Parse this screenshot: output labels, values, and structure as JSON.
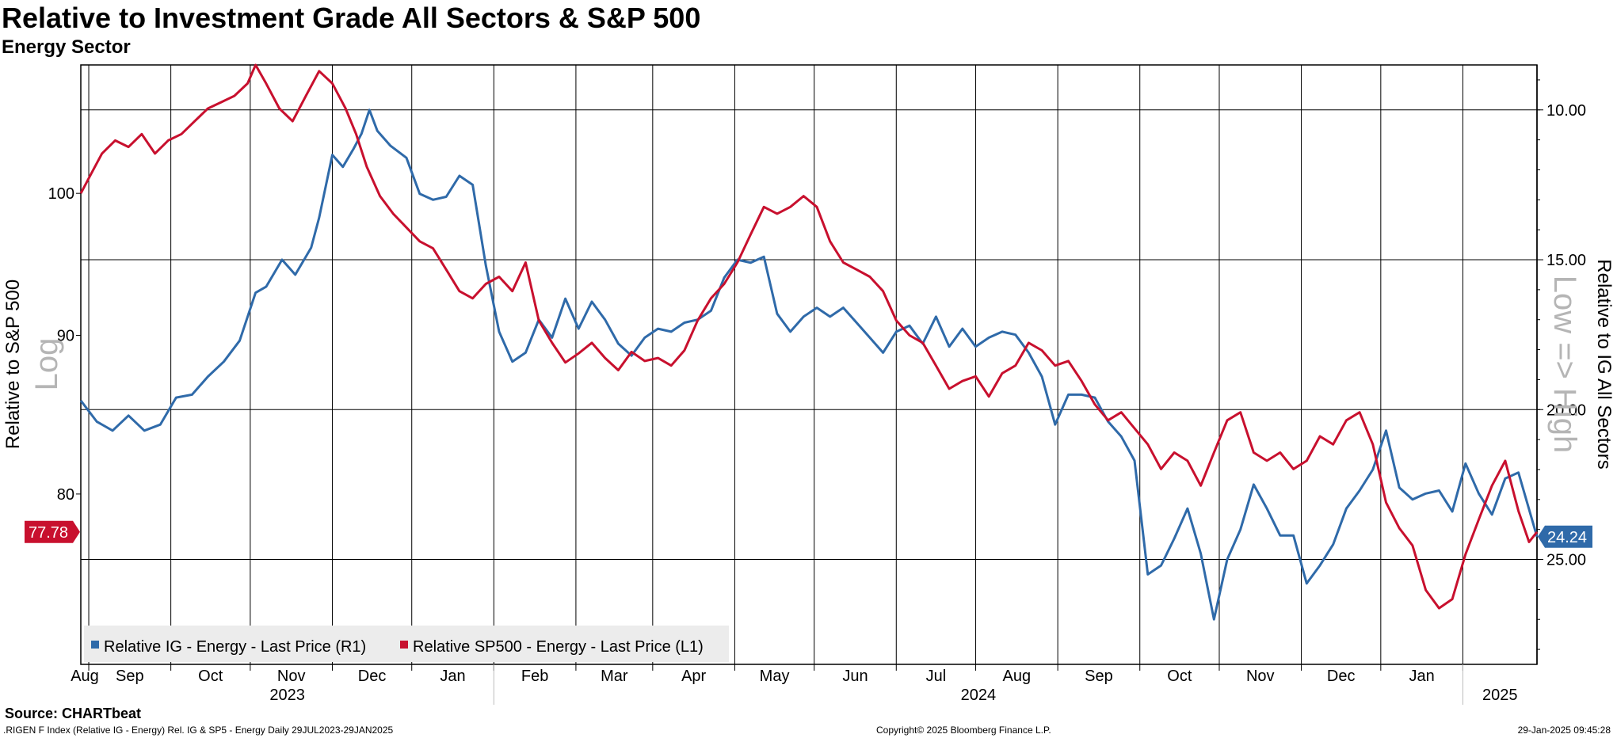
{
  "title": "Relative to Investment Grade All Sectors & S&P 500",
  "subtitle": "Energy Sector",
  "source": "Source: CHARTbeat",
  "footer": {
    "left": ".RIGEN F Index (Relative IG - Energy) Rel. IG & SP5 - Energy  Daily 29JUL2023-29JAN2025",
    "center": "Copyright© 2025 Bloomberg Finance L.P.",
    "right": "29-Jan-2025 09:45:28"
  },
  "chart_data": {
    "type": "line",
    "x_range": [
      "2023-07-29",
      "2025-01-29"
    ],
    "months": [
      "Aug",
      "Sep",
      "Oct",
      "Nov",
      "Dec",
      "Jan",
      "Feb",
      "Mar",
      "Apr",
      "May",
      "Jun",
      "Jul",
      "Aug",
      "Sep",
      "Oct",
      "Nov",
      "Dec",
      "Jan"
    ],
    "years": [
      "2023",
      "2024",
      "2025"
    ],
    "left_axis": {
      "label": "Relative to S&P 500",
      "scale_note": "Log",
      "scale": "log",
      "range": [
        70.5,
        110
      ],
      "ticks": [
        80,
        90,
        100
      ],
      "last_value_label": "77.78",
      "last_value": 77.78
    },
    "right_axis": {
      "label": "Relative to IG All Sectors",
      "scale_note": "Low => High",
      "inverted": true,
      "range": [
        8.5,
        28.5
      ],
      "ticks": [
        "10.00",
        "15.00",
        "20.00",
        "25.00"
      ],
      "last_value_label": "24.24",
      "last_value": 24.24
    },
    "legend_position": "bottom-left",
    "grid": true,
    "series": [
      {
        "name": "Relative IG - Energy - Last Price (R1)",
        "axis": "right",
        "color": "#2f6aa9",
        "points": [
          [
            "2023-07-29",
            19.7
          ],
          [
            "2023-08-04",
            20.4
          ],
          [
            "2023-08-10",
            20.7
          ],
          [
            "2023-08-16",
            20.2
          ],
          [
            "2023-08-22",
            20.7
          ],
          [
            "2023-08-28",
            20.5
          ],
          [
            "2023-09-03",
            19.6
          ],
          [
            "2023-09-09",
            19.5
          ],
          [
            "2023-09-15",
            18.9
          ],
          [
            "2023-09-21",
            18.4
          ],
          [
            "2023-09-27",
            17.7
          ],
          [
            "2023-10-03",
            16.1
          ],
          [
            "2023-10-07",
            15.9
          ],
          [
            "2023-10-13",
            15.0
          ],
          [
            "2023-10-18",
            15.5
          ],
          [
            "2023-10-24",
            14.6
          ],
          [
            "2023-10-27",
            13.6
          ],
          [
            "2023-11-01",
            11.5
          ],
          [
            "2023-11-05",
            11.9
          ],
          [
            "2023-11-09",
            11.3
          ],
          [
            "2023-11-12",
            10.8
          ],
          [
            "2023-11-15",
            10.0
          ],
          [
            "2023-11-18",
            10.7
          ],
          [
            "2023-11-23",
            11.2
          ],
          [
            "2023-11-29",
            11.6
          ],
          [
            "2023-12-04",
            12.8
          ],
          [
            "2023-12-09",
            13.0
          ],
          [
            "2023-12-14",
            12.9
          ],
          [
            "2023-12-19",
            12.2
          ],
          [
            "2023-12-24",
            12.5
          ],
          [
            "2023-12-29",
            15.2
          ],
          [
            "2024-01-03",
            17.4
          ],
          [
            "2024-01-08",
            18.4
          ],
          [
            "2024-01-13",
            18.1
          ],
          [
            "2024-01-18",
            17.0
          ],
          [
            "2024-01-23",
            17.6
          ],
          [
            "2024-01-28",
            16.3
          ],
          [
            "2024-02-02",
            17.3
          ],
          [
            "2024-02-07",
            16.4
          ],
          [
            "2024-02-12",
            17.0
          ],
          [
            "2024-02-17",
            17.8
          ],
          [
            "2024-02-22",
            18.2
          ],
          [
            "2024-02-27",
            17.6
          ],
          [
            "2024-03-03",
            17.3
          ],
          [
            "2024-03-08",
            17.4
          ],
          [
            "2024-03-13",
            17.1
          ],
          [
            "2024-03-18",
            17.0
          ],
          [
            "2024-03-23",
            16.7
          ],
          [
            "2024-03-28",
            15.6
          ],
          [
            "2024-04-02",
            15.0
          ],
          [
            "2024-04-07",
            15.1
          ],
          [
            "2024-04-12",
            14.9
          ],
          [
            "2024-04-17",
            16.8
          ],
          [
            "2024-04-22",
            17.4
          ],
          [
            "2024-04-27",
            16.9
          ],
          [
            "2024-05-02",
            16.6
          ],
          [
            "2024-05-07",
            16.9
          ],
          [
            "2024-05-12",
            16.6
          ],
          [
            "2024-05-17",
            17.1
          ],
          [
            "2024-05-22",
            17.6
          ],
          [
            "2024-05-27",
            18.1
          ],
          [
            "2024-06-01",
            17.4
          ],
          [
            "2024-06-06",
            17.2
          ],
          [
            "2024-06-11",
            17.8
          ],
          [
            "2024-06-16",
            16.9
          ],
          [
            "2024-06-21",
            17.9
          ],
          [
            "2024-06-26",
            17.3
          ],
          [
            "2024-07-01",
            17.9
          ],
          [
            "2024-07-06",
            17.6
          ],
          [
            "2024-07-11",
            17.4
          ],
          [
            "2024-07-16",
            17.5
          ],
          [
            "2024-07-21",
            18.1
          ],
          [
            "2024-07-26",
            18.9
          ],
          [
            "2024-07-31",
            20.5
          ],
          [
            "2024-08-05",
            19.5
          ],
          [
            "2024-08-10",
            19.5
          ],
          [
            "2024-08-15",
            19.6
          ],
          [
            "2024-08-20",
            20.4
          ],
          [
            "2024-08-25",
            20.9
          ],
          [
            "2024-08-30",
            21.7
          ],
          [
            "2024-09-04",
            25.5
          ],
          [
            "2024-09-09",
            25.2
          ],
          [
            "2024-09-14",
            24.3
          ],
          [
            "2024-09-19",
            23.3
          ],
          [
            "2024-09-24",
            24.8
          ],
          [
            "2024-09-29",
            27.0
          ],
          [
            "2024-10-04",
            25.0
          ],
          [
            "2024-10-09",
            24.0
          ],
          [
            "2024-10-14",
            22.5
          ],
          [
            "2024-10-19",
            23.3
          ],
          [
            "2024-10-24",
            24.2
          ],
          [
            "2024-10-29",
            24.2
          ],
          [
            "2024-11-03",
            25.8
          ],
          [
            "2024-11-08",
            25.2
          ],
          [
            "2024-11-13",
            24.5
          ],
          [
            "2024-11-18",
            23.3
          ],
          [
            "2024-11-23",
            22.7
          ],
          [
            "2024-11-28",
            22.0
          ],
          [
            "2024-12-03",
            20.7
          ],
          [
            "2024-12-08",
            22.6
          ],
          [
            "2024-12-13",
            23.0
          ],
          [
            "2024-12-18",
            22.8
          ],
          [
            "2024-12-23",
            22.7
          ],
          [
            "2024-12-28",
            23.4
          ],
          [
            "2025-01-02",
            21.8
          ],
          [
            "2025-01-07",
            22.8
          ],
          [
            "2025-01-12",
            23.5
          ],
          [
            "2025-01-17",
            22.3
          ],
          [
            "2025-01-22",
            22.1
          ],
          [
            "2025-01-29",
            24.24
          ]
        ]
      },
      {
        "name": "Relative SP500 - Energy - Last Price (L1)",
        "axis": "left",
        "color": "#c8102e",
        "points": [
          [
            "2023-07-29",
            100.0
          ],
          [
            "2023-08-02",
            101.5
          ],
          [
            "2023-08-06",
            103.0
          ],
          [
            "2023-08-11",
            104.0
          ],
          [
            "2023-08-16",
            103.5
          ],
          [
            "2023-08-21",
            104.5
          ],
          [
            "2023-08-26",
            103.0
          ],
          [
            "2023-08-31",
            104.0
          ],
          [
            "2023-09-05",
            104.5
          ],
          [
            "2023-09-10",
            105.5
          ],
          [
            "2023-09-15",
            106.5
          ],
          [
            "2023-09-20",
            107.0
          ],
          [
            "2023-09-25",
            107.5
          ],
          [
            "2023-09-30",
            108.5
          ],
          [
            "2023-10-03",
            110.0
          ],
          [
            "2023-10-07",
            108.5
          ],
          [
            "2023-10-12",
            106.5
          ],
          [
            "2023-10-17",
            105.5
          ],
          [
            "2023-10-22",
            107.5
          ],
          [
            "2023-10-27",
            109.5
          ],
          [
            "2023-11-01",
            108.5
          ],
          [
            "2023-11-06",
            106.5
          ],
          [
            "2023-11-10",
            104.5
          ],
          [
            "2023-11-14",
            102.0
          ],
          [
            "2023-11-19",
            99.8
          ],
          [
            "2023-11-24",
            98.5
          ],
          [
            "2023-11-29",
            97.5
          ],
          [
            "2023-12-04",
            96.5
          ],
          [
            "2023-12-09",
            96.0
          ],
          [
            "2023-12-14",
            94.5
          ],
          [
            "2023-12-19",
            93.0
          ],
          [
            "2023-12-24",
            92.5
          ],
          [
            "2023-12-29",
            93.5
          ],
          [
            "2024-01-03",
            94.0
          ],
          [
            "2024-01-08",
            93.0
          ],
          [
            "2024-01-13",
            95.0
          ],
          [
            "2024-01-18",
            91.0
          ],
          [
            "2024-01-23",
            89.5
          ],
          [
            "2024-01-28",
            88.2
          ],
          [
            "2024-02-02",
            88.8
          ],
          [
            "2024-02-07",
            89.5
          ],
          [
            "2024-02-12",
            88.5
          ],
          [
            "2024-02-17",
            87.7
          ],
          [
            "2024-02-22",
            88.9
          ],
          [
            "2024-02-27",
            88.3
          ],
          [
            "2024-03-03",
            88.5
          ],
          [
            "2024-03-08",
            88.0
          ],
          [
            "2024-03-13",
            89.0
          ],
          [
            "2024-03-18",
            91.0
          ],
          [
            "2024-03-23",
            92.5
          ],
          [
            "2024-03-28",
            93.5
          ],
          [
            "2024-04-02",
            95.0
          ],
          [
            "2024-04-07",
            97.0
          ],
          [
            "2024-04-12",
            99.0
          ],
          [
            "2024-04-17",
            98.5
          ],
          [
            "2024-04-22",
            99.0
          ],
          [
            "2024-04-27",
            99.8
          ],
          [
            "2024-05-02",
            99.0
          ],
          [
            "2024-05-07",
            96.5
          ],
          [
            "2024-05-12",
            95.0
          ],
          [
            "2024-05-17",
            94.5
          ],
          [
            "2024-05-22",
            94.0
          ],
          [
            "2024-05-27",
            93.0
          ],
          [
            "2024-06-01",
            91.0
          ],
          [
            "2024-06-06",
            90.0
          ],
          [
            "2024-06-11",
            89.5
          ],
          [
            "2024-06-16",
            88.0
          ],
          [
            "2024-06-21",
            86.5
          ],
          [
            "2024-06-26",
            87.0
          ],
          [
            "2024-07-01",
            87.3
          ],
          [
            "2024-07-06",
            86.0
          ],
          [
            "2024-07-11",
            87.5
          ],
          [
            "2024-07-16",
            88.0
          ],
          [
            "2024-07-21",
            89.5
          ],
          [
            "2024-07-26",
            89.0
          ],
          [
            "2024-07-31",
            88.0
          ],
          [
            "2024-08-05",
            88.3
          ],
          [
            "2024-08-10",
            87.0
          ],
          [
            "2024-08-15",
            85.5
          ],
          [
            "2024-08-20",
            84.5
          ],
          [
            "2024-08-25",
            85.0
          ],
          [
            "2024-08-30",
            84.0
          ],
          [
            "2024-09-04",
            83.0
          ],
          [
            "2024-09-09",
            81.5
          ],
          [
            "2024-09-14",
            82.5
          ],
          [
            "2024-09-19",
            82.0
          ],
          [
            "2024-09-24",
            80.5
          ],
          [
            "2024-09-29",
            82.5
          ],
          [
            "2024-10-04",
            84.5
          ],
          [
            "2024-10-09",
            85.0
          ],
          [
            "2024-10-14",
            82.5
          ],
          [
            "2024-10-19",
            82.0
          ],
          [
            "2024-10-24",
            82.5
          ],
          [
            "2024-10-29",
            81.5
          ],
          [
            "2024-11-03",
            82.0
          ],
          [
            "2024-11-08",
            83.5
          ],
          [
            "2024-11-13",
            83.0
          ],
          [
            "2024-11-18",
            84.5
          ],
          [
            "2024-11-23",
            85.0
          ],
          [
            "2024-11-28",
            83.0
          ],
          [
            "2024-12-03",
            79.5
          ],
          [
            "2024-12-08",
            78.0
          ],
          [
            "2024-12-13",
            77.0
          ],
          [
            "2024-12-18",
            74.5
          ],
          [
            "2024-12-23",
            73.5
          ],
          [
            "2024-12-28",
            74.0
          ],
          [
            "2025-01-02",
            76.5
          ],
          [
            "2025-01-07",
            78.5
          ],
          [
            "2025-01-12",
            80.5
          ],
          [
            "2025-01-17",
            82.0
          ],
          [
            "2025-01-22",
            79.0
          ],
          [
            "2025-01-26",
            77.2
          ],
          [
            "2025-01-29",
            77.78
          ]
        ]
      }
    ]
  }
}
